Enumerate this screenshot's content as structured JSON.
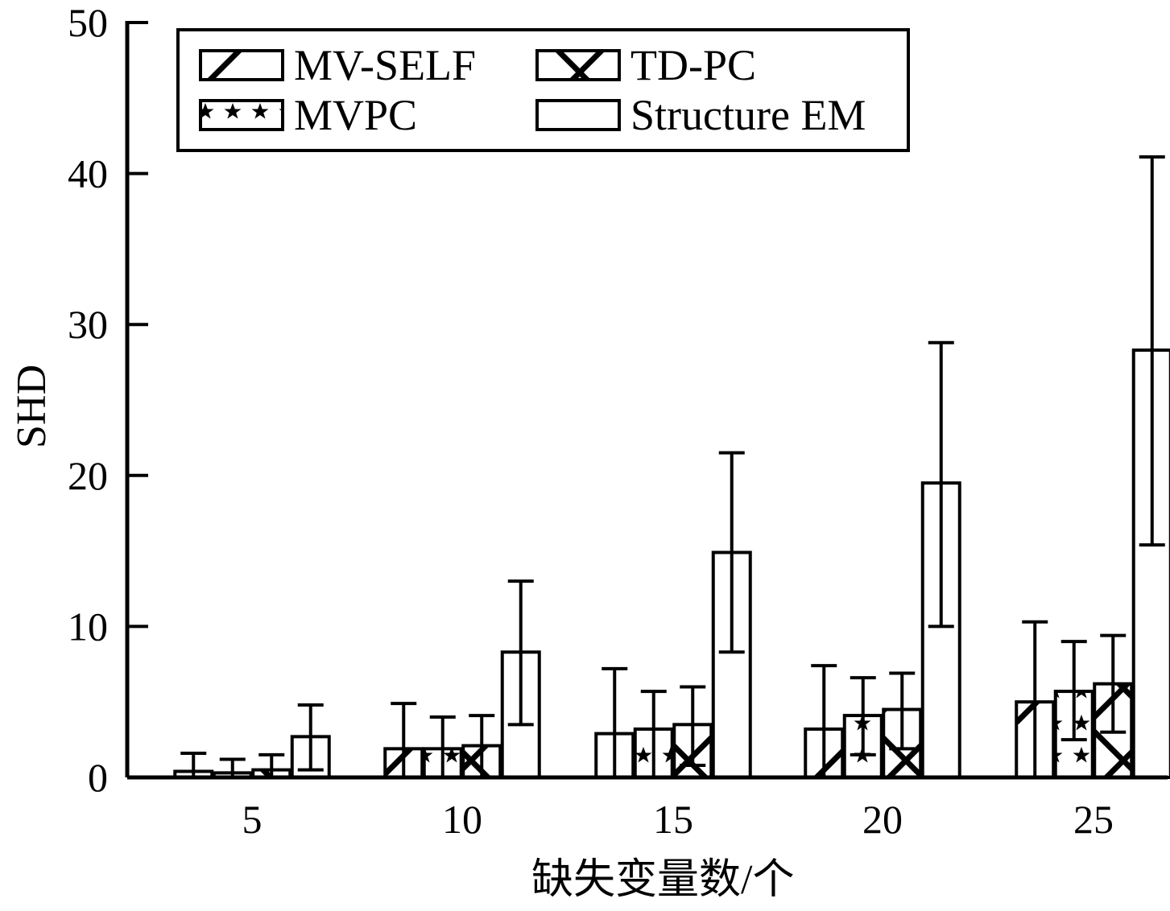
{
  "chart_data": {
    "type": "bar",
    "title": "",
    "xlabel": "缺失变量数/个",
    "ylabel": "SHD",
    "categories": [
      "5",
      "10",
      "15",
      "20",
      "25"
    ],
    "ylim": [
      0,
      50
    ],
    "yticks": [
      "0",
      "10",
      "20",
      "30",
      "40",
      "50"
    ],
    "legend_position": "top-left",
    "error_bars": true,
    "series": [
      {
        "name": "MV-SELF",
        "pattern": "diagonal-hatch",
        "values": [
          0.4,
          1.9,
          2.9,
          3.2,
          5.0
        ],
        "error_upper": [
          1.6,
          4.9,
          7.2,
          7.4,
          10.3
        ],
        "error_lower": [
          0.0,
          0.0,
          0.0,
          0.0,
          0.0
        ]
      },
      {
        "name": "MVPC",
        "pattern": "star-pattern",
        "values": [
          0.3,
          1.9,
          3.2,
          4.1,
          5.7
        ],
        "error_upper": [
          1.2,
          4.0,
          5.7,
          6.6,
          9.0
        ],
        "error_lower": [
          0.0,
          0.0,
          0.0,
          1.5,
          2.5
        ]
      },
      {
        "name": "TD-PC",
        "pattern": "cross-hatch",
        "values": [
          0.5,
          2.1,
          3.5,
          4.5,
          6.2
        ],
        "error_upper": [
          1.5,
          4.1,
          6.0,
          6.9,
          9.4
        ],
        "error_lower": [
          0.0,
          0.0,
          0.8,
          1.9,
          3.0
        ]
      },
      {
        "name": "Structure EM",
        "pattern": "none",
        "values": [
          2.7,
          8.3,
          14.9,
          19.5,
          28.3
        ],
        "error_upper": [
          4.8,
          13.0,
          21.5,
          28.8,
          41.1
        ],
        "error_lower": [
          0.5,
          3.5,
          8.3,
          10.0,
          15.4
        ]
      }
    ]
  }
}
